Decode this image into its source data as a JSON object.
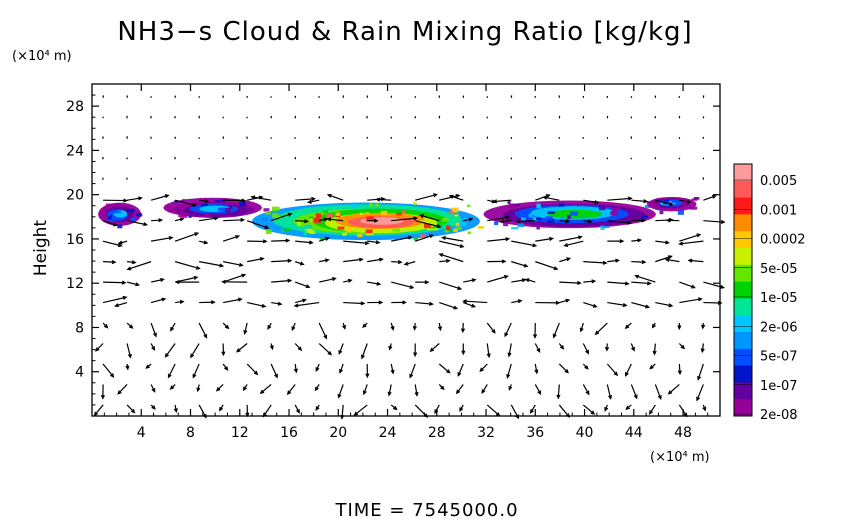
{
  "chart_data": {
    "type": "heatmap",
    "title": "NH3−s Cloud & Rain Mixing Ratio [kg/kg]",
    "ylabel": "Height",
    "x_unit": "(×10⁴ m)",
    "y_unit": "(×10⁴ m)",
    "footer": "TIME  =  7545000.0",
    "xlim": [
      0,
      51
    ],
    "ylim": [
      0,
      30
    ],
    "x_ticks": [
      4,
      8,
      12,
      16,
      20,
      24,
      28,
      32,
      36,
      40,
      44,
      48
    ],
    "y_ticks": [
      4,
      8,
      12,
      16,
      20,
      24,
      28
    ],
    "x_tick_labels": [
      "4",
      "8",
      "12",
      "16",
      "20",
      "24",
      "28",
      "32",
      "36",
      "40",
      "44",
      "48"
    ],
    "y_tick_labels": [
      "4",
      "8",
      "12",
      "16",
      "20",
      "24",
      "28"
    ],
    "colorbar": {
      "labels": [
        "0.005",
        "0.001",
        "0.0002",
        "5e-05",
        "1e-05",
        "2e-06",
        "5e-07",
        "1e-07",
        "2e-08"
      ],
      "colors": [
        "#ff9a9a",
        "#ff5a5a",
        "#ff1a1a",
        "#ff8c00",
        "#ffc800",
        "#c8f000",
        "#64e600",
        "#00d200",
        "#00e696",
        "#00c8ff",
        "#0096ff",
        "#0050ff",
        "#0014c8",
        "#6400a0",
        "#96009b"
      ]
    },
    "cloud_layer": [
      {
        "x": [
          0.5,
          4.0
        ],
        "y": [
          17.2,
          19.3
        ],
        "level": 13
      },
      {
        "x": [
          6.0,
          14.0
        ],
        "y": [
          17.8,
          19.6
        ],
        "level": 13
      },
      {
        "x": [
          13.0,
          31.5
        ],
        "y": [
          16.0,
          19.4
        ],
        "level": 6
      },
      {
        "x": [
          18.0,
          29.0
        ],
        "y": [
          16.4,
          18.6
        ],
        "level": 3
      },
      {
        "x": [
          32.0,
          46.0
        ],
        "y": [
          17.0,
          19.5
        ],
        "level": 11
      },
      {
        "x": [
          45.0,
          49.0
        ],
        "y": [
          18.5,
          19.8
        ],
        "level": 13
      }
    ],
    "wind_vectors": "quiver field (unlabeled)"
  }
}
